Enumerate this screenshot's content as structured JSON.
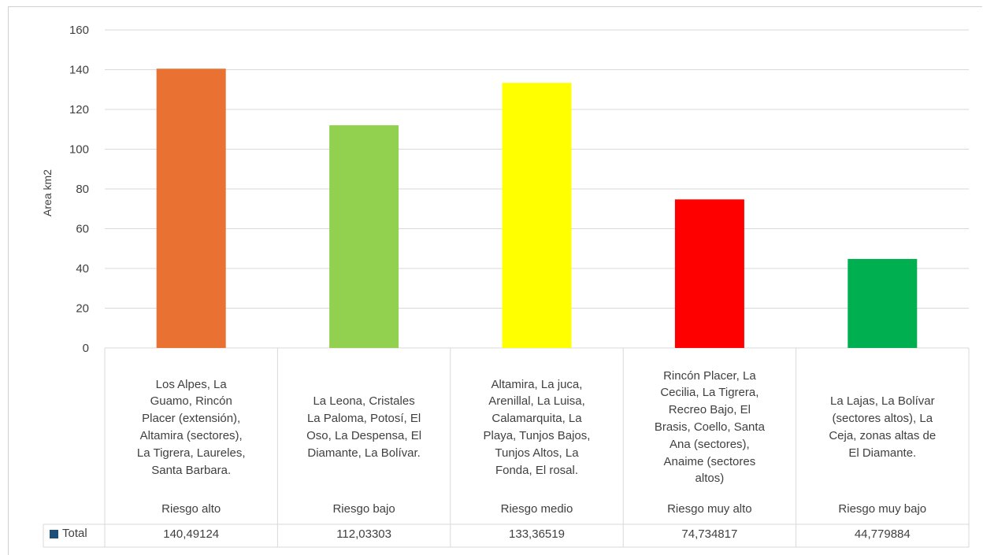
{
  "chart_data": {
    "type": "bar",
    "ylabel": "Area km2",
    "xlabel": "",
    "ylim": [
      0,
      160
    ],
    "yticks": [
      0,
      20,
      40,
      60,
      80,
      100,
      120,
      140,
      160
    ],
    "grid": true,
    "legend": "table-left",
    "categories": [
      "Los Alpes, La Guamo, Rincón Placer (extensión), Altamira (sectores), La Tigrera, Laureles, Santa Barbara. Riesgo alto",
      "La Leona, Cristales La Paloma, Potosí, El Oso, La Despensa, El Diamante, La Bolívar. Riesgo bajo",
      "Altamira, La juca, Arenillal, La Luisa, Calamarquita, La Playa, Tunjos Bajos, Tunjos Altos, La Fonda, El rosal. Riesgo medio",
      "Rincón Placer, La Cecilia, La Tigrera, Recreo Bajo, El Brasis, Coello, Santa Ana (sectores), Anaime (sectores altos) Riesgo muy alto",
      "La Lajas, La Bolívar (sectores altos), La Ceja, zonas altas de El Diamante. Riesgo muy bajo"
    ],
    "category_places": [
      [
        "Los Alpes, La",
        "Guamo, Rincón",
        "Placer (extensión),",
        "Altamira (sectores),",
        "La Tigrera, Laureles,",
        "Santa Barbara."
      ],
      [
        "La Leona, Cristales",
        "La Paloma, Potosí, El",
        "Oso, La Despensa, El",
        "Diamante, La Bolívar."
      ],
      [
        "Altamira, La juca,",
        "Arenillal, La Luisa,",
        "Calamarquita, La",
        "Playa, Tunjos Bajos,",
        "Tunjos Altos, La",
        "Fonda, El rosal."
      ],
      [
        "Rincón Placer, La",
        "Cecilia, La Tigrera,",
        "Recreo Bajo, El",
        "Brasis, Coello, Santa",
        "Ana (sectores),",
        "Anaime (sectores",
        "altos)"
      ],
      [
        "La Lajas, La Bolívar",
        "(sectores altos), La",
        "Ceja, zonas altas de",
        "El Diamante."
      ]
    ],
    "category_risk": [
      "Riesgo alto",
      "Riesgo bajo",
      "Riesgo medio",
      "Riesgo muy alto",
      "Riesgo muy bajo"
    ],
    "series": [
      {
        "name": "Total",
        "values": [
          140.49124,
          112.03303,
          133.36519,
          74.734817,
          44.779884
        ],
        "value_labels": [
          "140,49124",
          "112,03303",
          "133,36519",
          "74,734817",
          "44,779884"
        ],
        "colors": [
          "#e97132",
          "#92d050",
          "#ffff00",
          "#ff0000",
          "#00b050"
        ]
      }
    ],
    "legend_color": "#1f4e79"
  }
}
